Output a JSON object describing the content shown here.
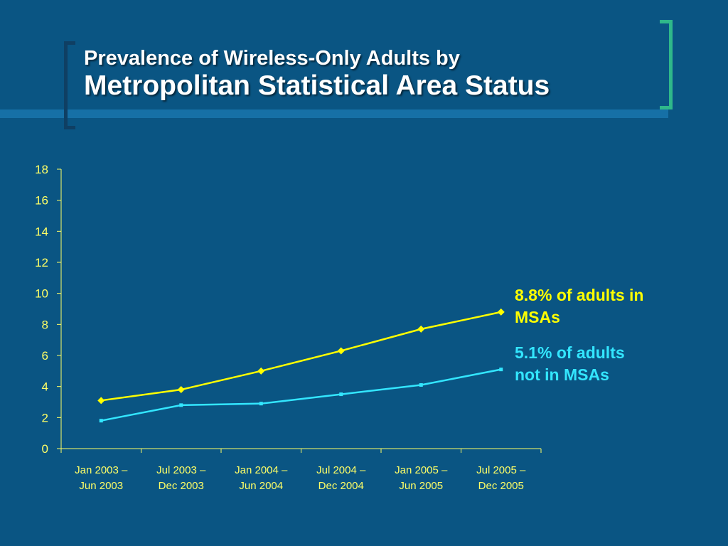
{
  "title": {
    "line1": "Prevalence of Wireless-Only Adults by",
    "line2": "Metropolitan Statistical Area Status"
  },
  "colors": {
    "background": "#0a5583",
    "bar": "#1670a6",
    "bracket_left": "#0f3f63",
    "bracket_right": "#2fb88a",
    "axis_text": "#ffff66",
    "msa_series": "#ffff00",
    "non_msa_series": "#33e6ff"
  },
  "chart_data": {
    "type": "line",
    "categories": [
      [
        "Jan 2003 –",
        "Jun 2003"
      ],
      [
        "Jul 2003 –",
        "Dec 2003"
      ],
      [
        "Jan 2004 –",
        "Jun 2004"
      ],
      [
        "Jul 2004 –",
        "Dec 2004"
      ],
      [
        "Jan 2005 –",
        "Jun 2005"
      ],
      [
        "Jul 2005 –",
        "Dec 2005"
      ]
    ],
    "series": [
      {
        "values": [
          3.1,
          3.8,
          5.0,
          6.3,
          7.7,
          8.8
        ],
        "marker": "diamond",
        "color": "#ffff00"
      },
      {
        "values": [
          1.8,
          2.8,
          2.9,
          3.5,
          4.1,
          5.1
        ],
        "marker": "square",
        "color": "#33e6ff"
      }
    ],
    "ylim": [
      0,
      18
    ],
    "yticks": [
      0,
      2,
      4,
      6,
      8,
      10,
      12,
      14,
      16,
      18
    ],
    "grid": false,
    "annotations": [
      {
        "text_line1": "8.8% of adults in",
        "text_line2": "MSAs"
      },
      {
        "text_line1": "5.1% of adults",
        "text_line2": "not in MSAs"
      }
    ]
  }
}
